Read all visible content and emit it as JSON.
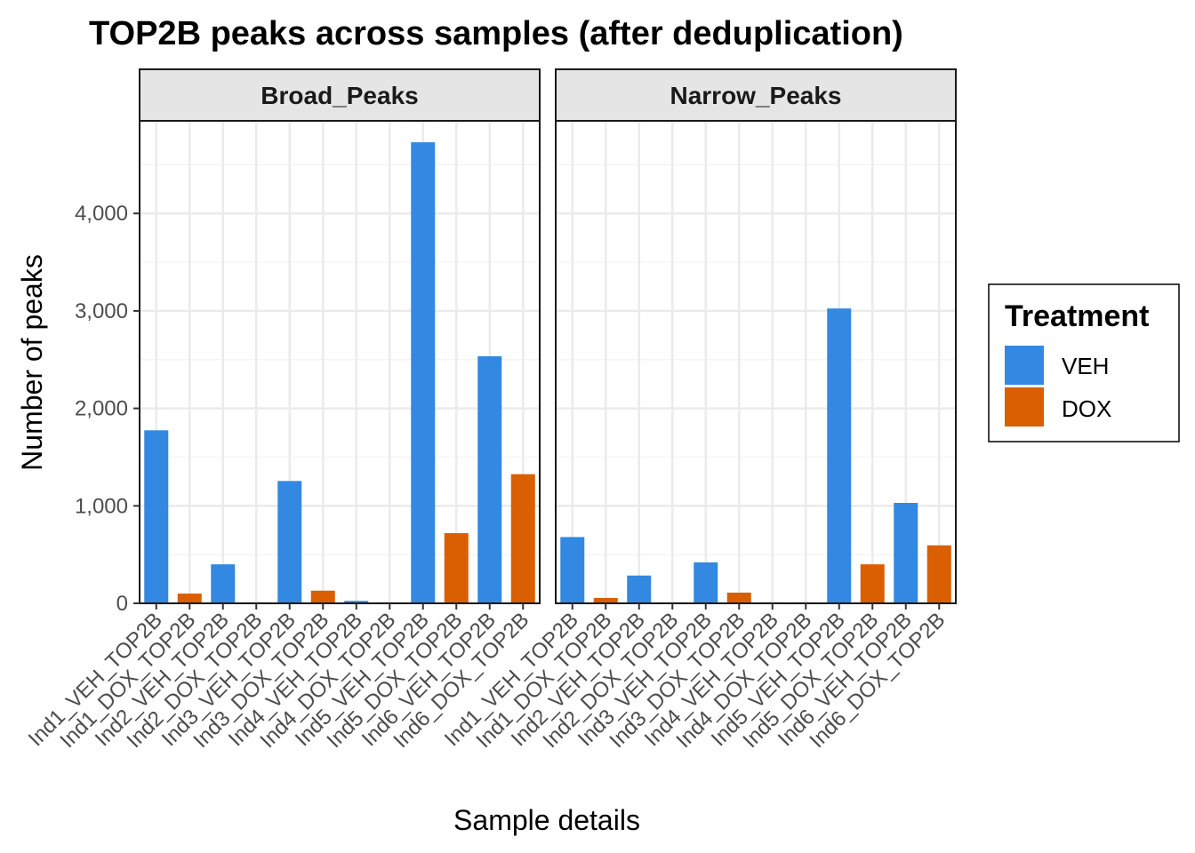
{
  "chart_data": {
    "type": "bar",
    "title": "TOP2B peaks across samples (after deduplication)",
    "xlabel": "Sample details",
    "ylabel": "Number of peaks",
    "ylim": [
      0,
      4950
    ],
    "yticks": [
      0,
      1000,
      2000,
      3000,
      4000
    ],
    "ytick_labels": [
      "0",
      "1,000",
      "2,000",
      "3,000",
      "4,000"
    ],
    "grid": true,
    "categories": [
      "Ind1_VEH_TOP2B",
      "Ind1_DOX_TOP2B",
      "Ind2_VEH_TOP2B",
      "Ind2_DOX_TOP2B",
      "Ind3_VEH_TOP2B",
      "Ind3_DOX_TOP2B",
      "Ind4_VEH_TOP2B",
      "Ind4_DOX_TOP2B",
      "Ind5_VEH_TOP2B",
      "Ind5_DOX_TOP2B",
      "Ind6_VEH_TOP2B",
      "Ind6_DOX_TOP2B"
    ],
    "treatment": [
      "VEH",
      "DOX",
      "VEH",
      "DOX",
      "VEH",
      "DOX",
      "VEH",
      "DOX",
      "VEH",
      "DOX",
      "VEH",
      "DOX"
    ],
    "panels": [
      {
        "name": "Broad_Peaks",
        "values": [
          1775,
          100,
          400,
          10,
          1255,
          130,
          25,
          10,
          4730,
          720,
          2535,
          1325
        ]
      },
      {
        "name": "Narrow_Peaks",
        "values": [
          680,
          55,
          285,
          10,
          420,
          110,
          10,
          10,
          3025,
          400,
          1030,
          595
        ]
      }
    ],
    "legend": {
      "title": "Treatment",
      "position": "right",
      "entries": [
        {
          "label": "VEH",
          "color": "#3388E1"
        },
        {
          "label": "DOX",
          "color": "#D95F02"
        }
      ]
    }
  }
}
